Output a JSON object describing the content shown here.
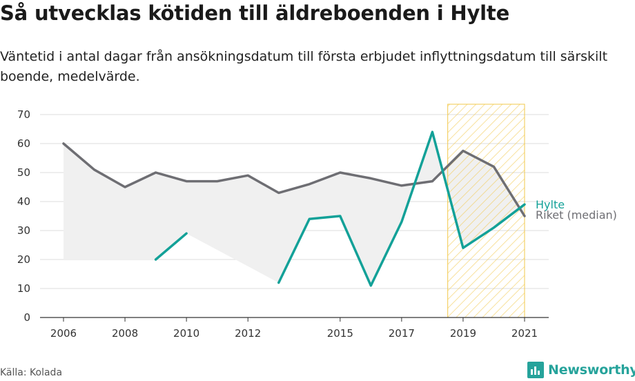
{
  "title": "Så utvecklas kötiden till äldreboenden i Hylte",
  "subtitle": "Väntetid i antal dagar från ansökningsdatum till första erbjudet inflyttningsdatum till särskilt boende, medelvärde.",
  "source": "Källa: Kolada",
  "brand": {
    "name": "Newsworthy",
    "icon": "bar-chart-speech-icon"
  },
  "colors": {
    "hylte": "#13a198",
    "riket": "#6e6e73",
    "hatch": "#f2c84b",
    "grid": "#dcdcdc",
    "area": "#f0f0f0"
  },
  "chart_data": {
    "type": "line",
    "x_ticks": [
      2006,
      2008,
      2010,
      2012,
      2015,
      2017,
      2019,
      2021
    ],
    "y_ticks": [
      0,
      10,
      20,
      30,
      40,
      50,
      60,
      70
    ],
    "xlim": [
      2006,
      2021
    ],
    "ylim": [
      0,
      70
    ],
    "grid": true,
    "highlight_range": [
      2019,
      2021
    ],
    "series": [
      {
        "name": "Hylte",
        "color": "#13a198",
        "points": [
          {
            "x": 2009,
            "y": 20
          },
          {
            "x": 2010,
            "y": 29
          },
          {
            "x": 2013,
            "y": 12
          },
          {
            "x": 2014,
            "y": 34
          },
          {
            "x": 2015,
            "y": 35
          },
          {
            "x": 2016,
            "y": 11
          },
          {
            "x": 2017,
            "y": 33
          },
          {
            "x": 2018,
            "y": 64
          },
          {
            "x": 2019,
            "y": 24
          },
          {
            "x": 2020,
            "y": 31
          },
          {
            "x": 2021,
            "y": 39
          }
        ]
      },
      {
        "name": "Riket (median)",
        "color": "#6e6e73",
        "points": [
          {
            "x": 2006,
            "y": 60
          },
          {
            "x": 2007,
            "y": 51
          },
          {
            "x": 2008,
            "y": 45
          },
          {
            "x": 2009,
            "y": 50
          },
          {
            "x": 2010,
            "y": 47
          },
          {
            "x": 2011,
            "y": 47
          },
          {
            "x": 2012,
            "y": 49
          },
          {
            "x": 2013,
            "y": 43
          },
          {
            "x": 2014,
            "y": 46
          },
          {
            "x": 2015,
            "y": 50
          },
          {
            "x": 2016,
            "y": 48
          },
          {
            "x": 2017,
            "y": 45.5
          },
          {
            "x": 2018,
            "y": 47
          },
          {
            "x": 2019,
            "y": 57.5
          },
          {
            "x": 2020,
            "y": 52
          },
          {
            "x": 2021,
            "y": 35
          }
        ]
      }
    ]
  }
}
